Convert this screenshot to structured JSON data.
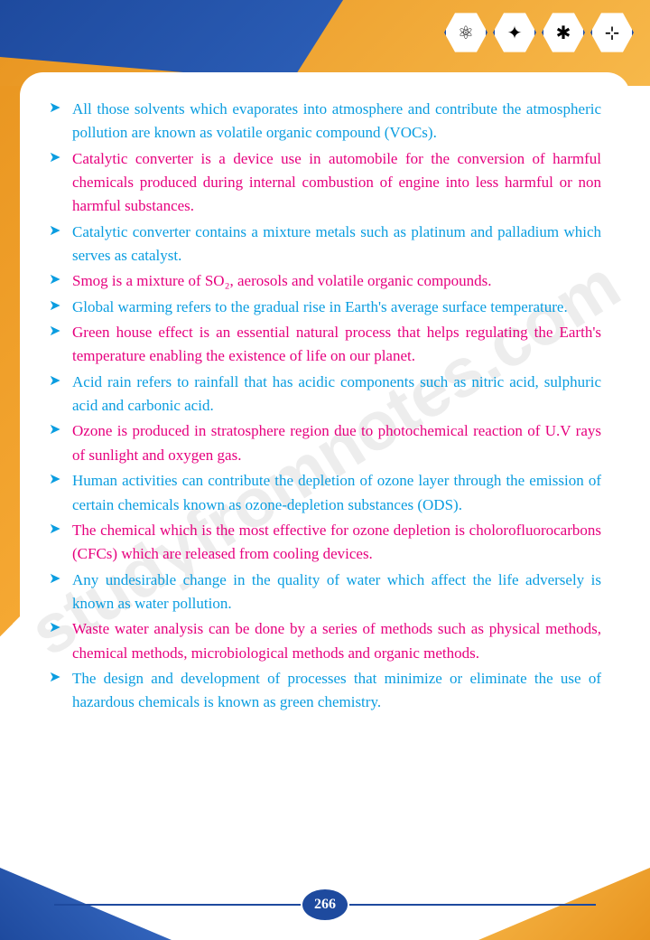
{
  "page_number": "266",
  "watermark": "studyfromnotes.com",
  "colors": {
    "blue_text": "#0a9de0",
    "pink_text": "#e6007e",
    "frame_orange": "#e8941f",
    "frame_blue": "#1e4a9e",
    "background": "#ffffff"
  },
  "icons": [
    "molecule",
    "atom",
    "network",
    "structure"
  ],
  "bullets": [
    {
      "color": "blue",
      "text": "All those solvents which evaporates into atmosphere and contribute the atmospheric pollution are known as volatile organic compound (VOCs)."
    },
    {
      "color": "pink",
      "text": "Catalytic converter is a device use in automobile for the conversion of harmful chemicals produced during internal combustion of engine into less harmful or non harmful substances."
    },
    {
      "color": "blue",
      "text": "Catalytic converter contains a mixture metals such as platinum and palladium which serves as catalyst."
    },
    {
      "color": "pink",
      "text": "Smog is a mixture of SO₂, aerosols and volatile organic compounds."
    },
    {
      "color": "blue",
      "text": "Global warming refers to the gradual rise in Earth's average surface temperature."
    },
    {
      "color": "pink",
      "text": "Green house effect is an essential natural process that helps regulating the Earth's temperature enabling the existence of life on our planet."
    },
    {
      "color": "blue",
      "text": "Acid rain refers to rainfall that has acidic components such as nitric acid, sulphuric acid and carbonic acid."
    },
    {
      "color": "pink",
      "text": "Ozone is produced in stratosphere region due to photochemical reaction of U.V rays of sunlight and oxygen gas."
    },
    {
      "color": "blue",
      "text": "Human activities can contribute the depletion of ozone layer through the emission of certain chemicals known as ozone-depletion substances (ODS)."
    },
    {
      "color": "pink",
      "text": "The chemical which is the most effective for ozone depletion is cholorofluorocarbons (CFCs) which are released from cooling devices."
    },
    {
      "color": "blue",
      "text": "Any undesirable change in the quality of water which affect the life adversely is known as water pollution."
    },
    {
      "color": "pink",
      "text": "Waste water analysis can be done by a series of methods such as physical methods, chemical methods, microbiological methods and organic methods."
    },
    {
      "color": "blue",
      "text": "The design and development of processes that minimize or eliminate the use of hazardous chemicals is known as green chemistry."
    }
  ]
}
